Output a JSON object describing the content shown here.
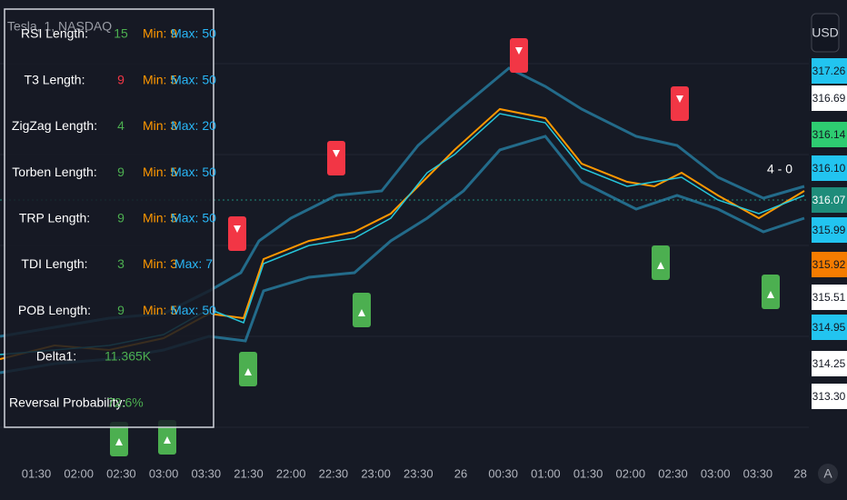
{
  "header": {
    "symbol": "Tesla, 1, NASDAQ",
    "currency": "USD"
  },
  "table": {
    "rows": [
      [
        "RSI Length:",
        "15",
        "Min: 9",
        "Max: 50"
      ],
      [
        "T3 Length:",
        "9",
        "Min: 5",
        "Max: 50"
      ],
      [
        "ZigZag Length:",
        "4",
        "Min: 3",
        "Max: 20"
      ],
      [
        "Torben Length:",
        "9",
        "Min: 5",
        "Max: 50"
      ],
      [
        "TRP Length:",
        "9",
        "Min: 5",
        "Max: 50"
      ],
      [
        "TDI Length:",
        "3",
        "Min: 3",
        "Max: 7"
      ],
      [
        "POB Length:",
        "9",
        "Min: 5",
        "Max: 50"
      ],
      [
        "Delta1:",
        "11.365K"
      ],
      [
        "Reversal Probability:",
        "72.6%"
      ]
    ]
  },
  "score": "4 - 0",
  "price_labels": [
    "317.26",
    "316.69",
    "316.14",
    "316.10",
    "316.07",
    "315.99",
    "315.92",
    "315.51",
    "314.95",
    "314.25",
    "313.30"
  ],
  "time_axis": [
    "01:30",
    "02:00",
    "02:30",
    "03:00",
    "03:30",
    "21:30",
    "22:00",
    "22:30",
    "23:00",
    "23:30",
    "26",
    "00:30",
    "01:00",
    "01:30",
    "02:00",
    "02:30",
    "03:00",
    "03:30",
    "28"
  ],
  "footer": {
    "auto_button": "A"
  }
}
